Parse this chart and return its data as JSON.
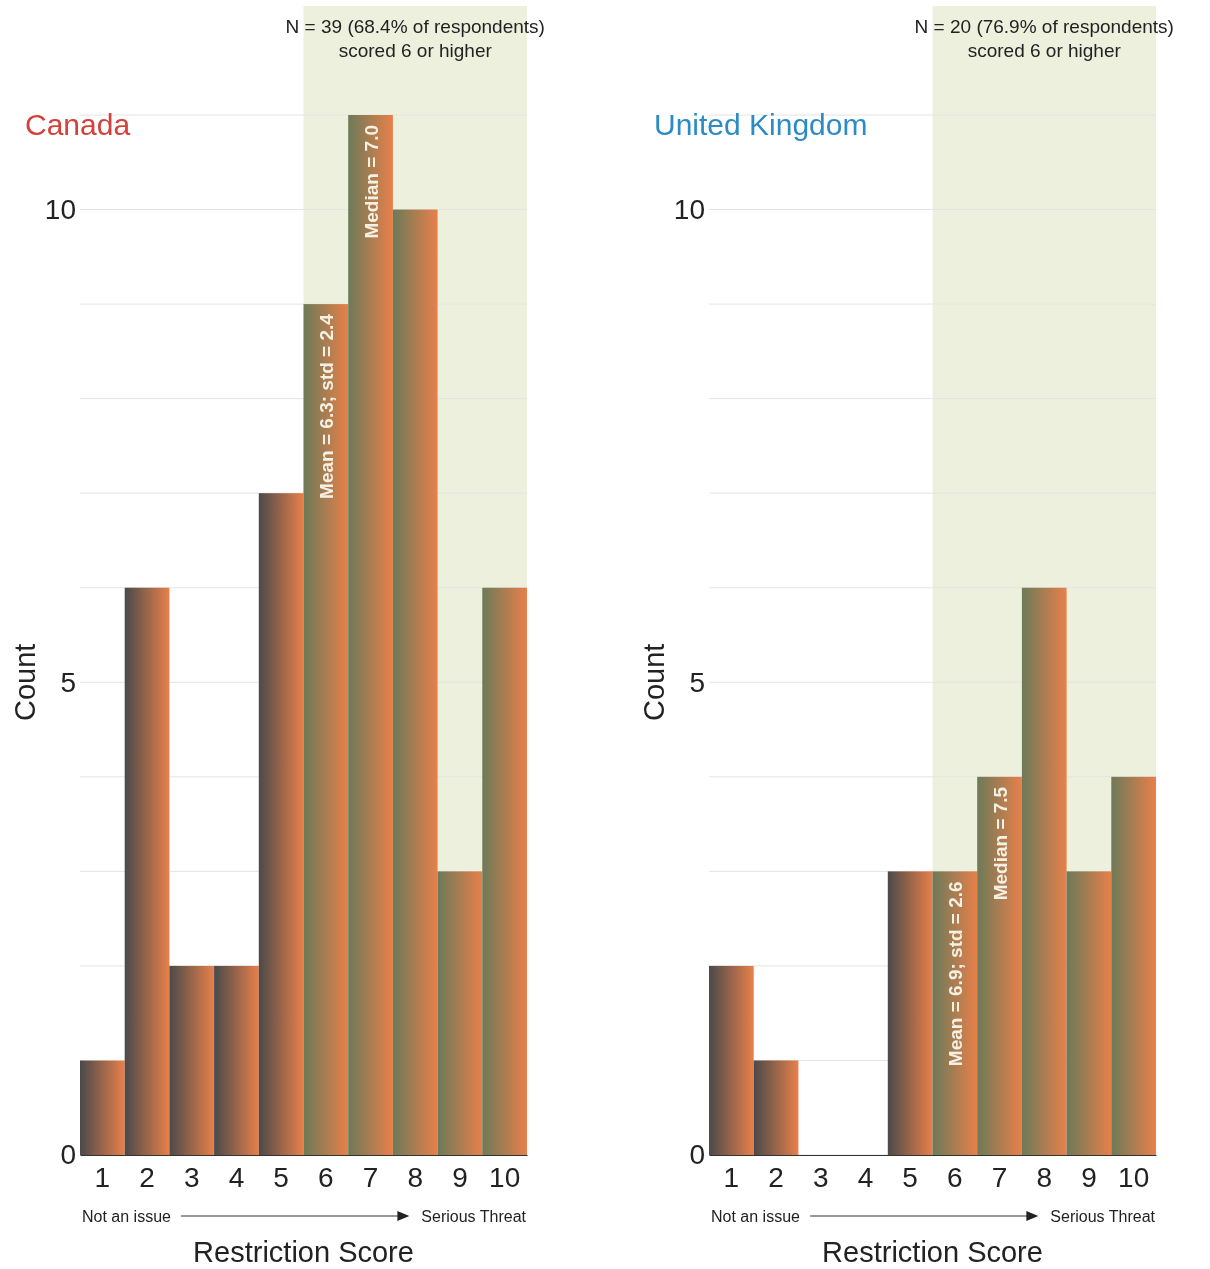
{
  "chart_data": [
    {
      "type": "bar",
      "title": "Canada",
      "xlabel": "Restriction Score",
      "ylabel": "Count",
      "categories": [
        "1",
        "2",
        "3",
        "4",
        "5",
        "6",
        "7",
        "8",
        "9",
        "10"
      ],
      "values": [
        1,
        6,
        2,
        2,
        7,
        9,
        11,
        10,
        3,
        6
      ],
      "color": "#e8804a",
      "ylim": [
        0,
        11
      ],
      "yticks": [
        0,
        {
          "value": 2,
          "label": null
        },
        {
          "value": 3,
          "label": null
        },
        {
          "value": 4,
          "label": null
        },
        5,
        {
          "value": 6,
          "label": null
        },
        {
          "value": 7,
          "label": null
        },
        {
          "value": 8,
          "label": null
        },
        {
          "value": 9,
          "label": null
        },
        10,
        {
          "value": 11,
          "label": null
        }
      ],
      "grid": "y",
      "bands": [
        {
          "axis": "x",
          "from": "6",
          "to": "10",
          "label": "N = 39 (68.4% of respondents)\nscored 6 or higher",
          "color": "#eef0de"
        }
      ],
      "annotations": [
        {
          "text": "Mean = 6.3; std = 2.4",
          "x": "6",
          "y": 9
        },
        {
          "text": "Median = 7.0",
          "x": "7",
          "y": 11
        },
        "Not an issue",
        "Serious Threat"
      ]
    },
    {
      "type": "bar",
      "title": "United Kingdom",
      "xlabel": "Restriction Score",
      "ylabel": "Count",
      "categories": [
        "1",
        "2",
        "3",
        "4",
        "5",
        "6",
        "7",
        "8",
        "9",
        "10"
      ],
      "values": [
        2,
        1,
        0,
        0,
        3,
        3,
        4,
        6,
        3,
        4
      ],
      "color": "#e8804a",
      "ylim": [
        0,
        11
      ],
      "yticks": [
        0,
        {
          "value": 1,
          "label": null
        },
        {
          "value": 2,
          "label": null
        },
        {
          "value": 3,
          "label": null
        },
        {
          "value": 4,
          "label": null
        },
        5,
        {
          "value": 6,
          "label": null
        },
        {
          "value": 7,
          "label": null
        },
        {
          "value": 8,
          "label": null
        },
        {
          "value": 9,
          "label": null
        },
        10,
        {
          "value": 11,
          "label": null
        }
      ],
      "grid": "y",
      "bands": [
        {
          "axis": "x",
          "from": "6",
          "to": "10",
          "label": "N = 20 (76.9% of respondents)\nscored 6 or higher",
          "color": "#eef0de"
        }
      ],
      "annotations": [
        {
          "text": "Mean = 6.9; std = 2.6",
          "x": "6",
          "y": 3
        },
        {
          "text": "Median = 7.5",
          "x": "7",
          "y": 4
        },
        "Not an issue",
        "Serious Threat"
      ]
    }
  ]
}
